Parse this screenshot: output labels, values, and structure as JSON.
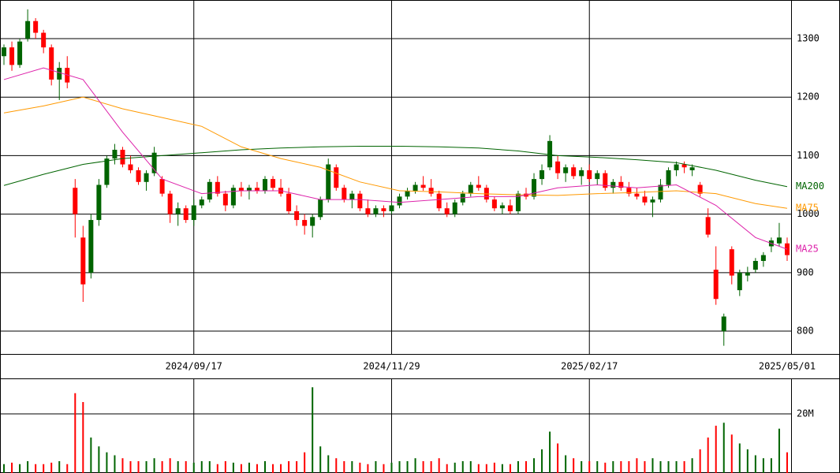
{
  "chart_data": {
    "type": "candlestick",
    "categories": [
      null,
      null,
      null,
      null,
      null,
      null,
      null,
      null,
      null,
      null,
      null,
      null,
      null,
      null,
      null,
      null,
      null,
      null,
      null,
      null,
      null,
      null,
      null,
      null,
      "2024/09/17",
      null,
      null,
      null,
      null,
      null,
      null,
      null,
      null,
      null,
      null,
      null,
      null,
      null,
      null,
      null,
      null,
      null,
      null,
      null,
      null,
      null,
      null,
      null,
      null,
      "2024/11/29",
      null,
      null,
      null,
      null,
      null,
      null,
      null,
      null,
      null,
      null,
      null,
      null,
      null,
      null,
      null,
      null,
      null,
      null,
      null,
      null,
      null,
      null,
      null,
      null,
      "2025/02/17",
      null,
      null,
      null,
      null,
      null,
      null,
      null,
      null,
      null,
      null,
      null,
      null,
      null,
      null,
      null,
      null,
      null,
      null,
      null,
      null,
      null,
      null,
      null,
      null,
      "2025/05/01"
    ],
    "open": [
      1270,
      1285,
      1255,
      1300,
      1330,
      1310,
      1285,
      1230,
      1250,
      1045,
      960,
      900,
      990,
      1050,
      1095,
      1110,
      1085,
      1075,
      1055,
      1070,
      1060,
      1035,
      1000,
      1010,
      990,
      1015,
      1025,
      1055,
      1035,
      1015,
      1045,
      1040,
      1045,
      1040,
      1060,
      1045,
      1035,
      1005,
      990,
      980,
      995,
      1025,
      1080,
      1045,
      1025,
      1035,
      1010,
      1000,
      1010,
      1005,
      1015,
      1030,
      1040,
      1050,
      1045,
      1035,
      1010,
      1000,
      1020,
      1035,
      1050,
      1045,
      1025,
      1010,
      1015,
      1005,
      1035,
      1030,
      1060,
      1080,
      1090,
      1070,
      1080,
      1065,
      1075,
      1060,
      1070,
      1045,
      1055,
      1045,
      1035,
      1030,
      1020,
      1025,
      1050,
      1075,
      1085,
      1075,
      1050,
      995,
      905,
      800,
      940,
      870,
      895,
      905,
      920,
      945,
      950,
      950
    ],
    "high": [
      1290,
      1295,
      1300,
      1350,
      1335,
      1315,
      1290,
      1260,
      1270,
      1060,
      980,
      1000,
      1060,
      1100,
      1120,
      1115,
      1100,
      1080,
      1075,
      1115,
      1065,
      1040,
      1020,
      1015,
      1025,
      1030,
      1060,
      1065,
      1040,
      1050,
      1055,
      1050,
      1055,
      1065,
      1065,
      1060,
      1045,
      1015,
      1000,
      1000,
      1030,
      1095,
      1085,
      1050,
      1040,
      1040,
      1025,
      1015,
      1015,
      1020,
      1035,
      1045,
      1055,
      1065,
      1060,
      1040,
      1020,
      1025,
      1040,
      1055,
      1065,
      1050,
      1030,
      1020,
      1025,
      1040,
      1045,
      1070,
      1085,
      1135,
      1100,
      1085,
      1085,
      1080,
      1085,
      1075,
      1075,
      1060,
      1065,
      1055,
      1045,
      1040,
      1030,
      1060,
      1080,
      1090,
      1090,
      1085,
      1055,
      1010,
      945,
      830,
      945,
      905,
      910,
      925,
      935,
      960,
      985,
      960
    ],
    "low": [
      1255,
      1245,
      1250,
      1295,
      1300,
      1275,
      1220,
      1195,
      1215,
      960,
      850,
      890,
      980,
      1045,
      1085,
      1080,
      1070,
      1050,
      1040,
      1065,
      1030,
      985,
      980,
      985,
      980,
      1010,
      1020,
      1030,
      1005,
      1010,
      1030,
      1025,
      1035,
      1035,
      1040,
      1030,
      1000,
      980,
      965,
      960,
      990,
      1020,
      1040,
      1020,
      1010,
      1005,
      995,
      995,
      995,
      1000,
      1010,
      1025,
      1035,
      1040,
      1030,
      1005,
      995,
      995,
      1015,
      1030,
      1040,
      1020,
      1005,
      1000,
      1000,
      1000,
      1025,
      1025,
      1050,
      1075,
      1060,
      1055,
      1060,
      1050,
      1055,
      1050,
      1040,
      1035,
      1040,
      1030,
      1025,
      1015,
      995,
      1020,
      1045,
      1065,
      1070,
      1065,
      1030,
      960,
      845,
      775,
      880,
      860,
      885,
      900,
      910,
      935,
      945,
      920
    ],
    "close": [
      1285,
      1255,
      1295,
      1330,
      1310,
      1285,
      1230,
      1250,
      1225,
      1000,
      880,
      990,
      1050,
      1095,
      1110,
      1085,
      1075,
      1055,
      1070,
      1105,
      1035,
      1000,
      1010,
      990,
      1015,
      1025,
      1055,
      1035,
      1015,
      1045,
      1040,
      1045,
      1040,
      1060,
      1045,
      1035,
      1005,
      990,
      980,
      995,
      1025,
      1085,
      1045,
      1025,
      1035,
      1010,
      1000,
      1010,
      1005,
      1015,
      1030,
      1040,
      1050,
      1045,
      1035,
      1010,
      1000,
      1020,
      1035,
      1050,
      1045,
      1025,
      1010,
      1015,
      1005,
      1035,
      1030,
      1060,
      1075,
      1125,
      1070,
      1080,
      1065,
      1075,
      1060,
      1070,
      1045,
      1055,
      1045,
      1035,
      1030,
      1020,
      1025,
      1050,
      1075,
      1085,
      1080,
      1080,
      1035,
      965,
      855,
      825,
      895,
      900,
      900,
      920,
      930,
      955,
      960,
      930
    ],
    "volume": [
      3,
      3.5,
      3,
      4,
      3,
      3,
      3.5,
      4,
      3,
      27,
      24,
      12,
      9,
      7,
      6,
      5,
      4,
      4,
      4,
      5,
      4,
      5,
      4,
      4,
      3.5,
      4,
      4,
      3,
      4,
      3.5,
      3,
      3.5,
      3,
      4,
      3,
      3,
      4,
      4,
      7,
      29,
      9,
      6,
      5,
      4,
      4,
      3.5,
      3,
      4,
      3,
      3.5,
      4,
      4,
      5,
      4,
      4,
      5,
      3,
      3.5,
      4,
      4,
      3,
      3,
      3.5,
      3,
      3,
      4,
      4,
      5,
      8,
      14,
      10,
      6,
      5,
      4,
      4,
      4,
      3.5,
      4,
      4,
      4,
      5,
      4,
      5,
      4,
      4,
      4,
      4,
      5,
      8,
      12,
      16,
      17,
      13,
      10,
      8,
      6,
      5,
      5,
      15,
      7
    ],
    "color_up": "#006400",
    "color_down": "#ff0000",
    "ylim": [
      761,
      1366
    ],
    "yticks": [
      800,
      900,
      1000,
      1100,
      1200,
      1300
    ],
    "volume_ylim": [
      0,
      32
    ],
    "volume_yticks": [
      {
        "value": 20,
        "label": "20M"
      }
    ],
    "series": [
      {
        "name": "MA200",
        "color": "#006400",
        "x": [
          0,
          5,
          10,
          15,
          20,
          25,
          30,
          35,
          40,
          45,
          50,
          55,
          60,
          65,
          70,
          75,
          80,
          85,
          90,
          95,
          99
        ],
        "values": [
          1049,
          1068,
          1085,
          1095,
          1100,
          1105,
          1110,
          1113,
          1115,
          1116,
          1116,
          1115,
          1113,
          1108,
          1100,
          1097,
          1093,
          1088,
          1075,
          1058,
          1047
        ]
      },
      {
        "name": "MA75",
        "color": "#ff9900",
        "x": [
          0,
          5,
          10,
          15,
          20,
          25,
          30,
          35,
          40,
          45,
          50,
          55,
          60,
          65,
          70,
          75,
          80,
          85,
          90,
          95,
          99
        ],
        "values": [
          1173,
          1185,
          1200,
          1180,
          1165,
          1150,
          1115,
          1095,
          1080,
          1055,
          1040,
          1038,
          1035,
          1033,
          1032,
          1035,
          1037,
          1040,
          1035,
          1018,
          1010
        ]
      },
      {
        "name": "MA25",
        "color": "#dd22aa",
        "x": [
          0,
          5,
          10,
          15,
          20,
          25,
          30,
          35,
          40,
          45,
          50,
          55,
          60,
          65,
          70,
          75,
          80,
          85,
          90,
          95,
          99
        ],
        "values": [
          1230,
          1250,
          1230,
          1140,
          1060,
          1035,
          1040,
          1040,
          1025,
          1025,
          1020,
          1025,
          1030,
          1030,
          1045,
          1050,
          1045,
          1050,
          1015,
          960,
          940
        ]
      }
    ]
  }
}
